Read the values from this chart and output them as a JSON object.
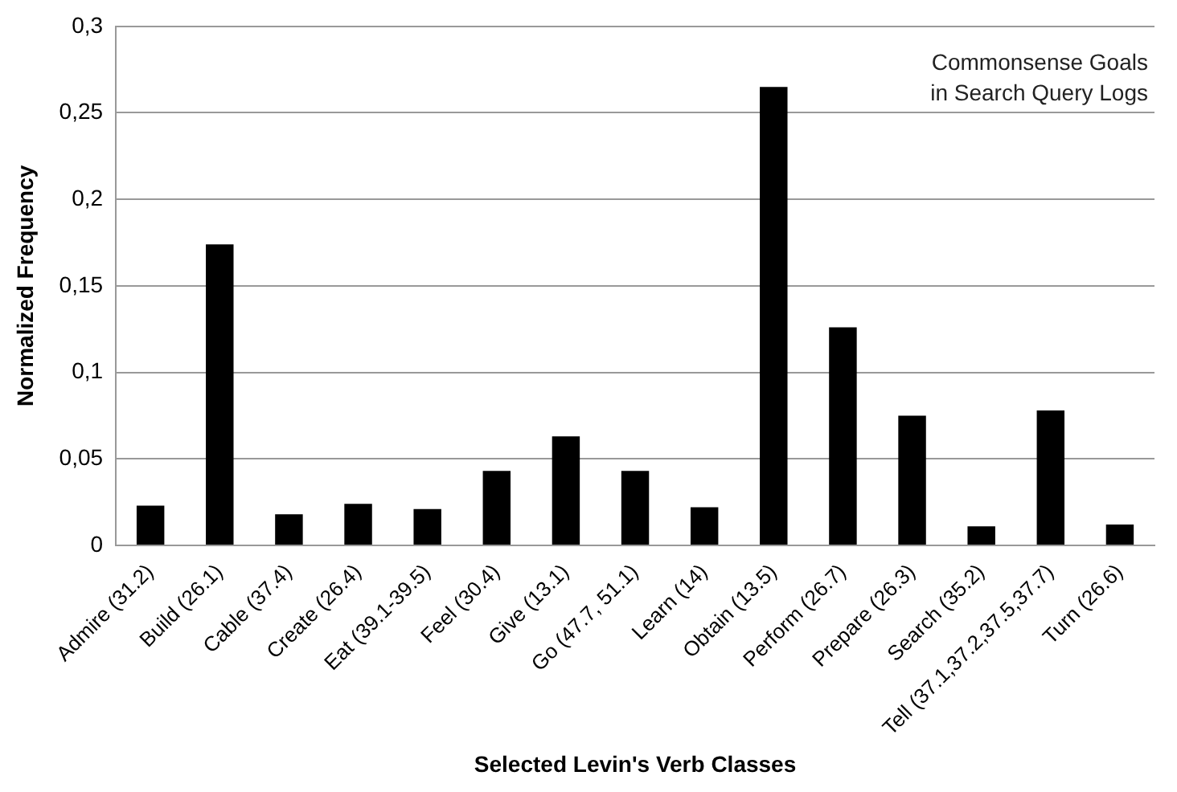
{
  "chart_data": {
    "type": "bar",
    "categories": [
      "Admire (31.2)",
      "Build (26.1)",
      "Cable (37.4)",
      "Create (26.4)",
      "Eat (39.1-39.5)",
      "Feel (30.4)",
      "Give (13.1)",
      "Go (47.7, 51.1)",
      "Learn (14)",
      "Obtain (13.5)",
      "Perform (26.7)",
      "Prepare (26.3)",
      "Search (35.2)",
      "Tell (37.1,37.2,37.5,37.7)",
      "Turn (26.6)"
    ],
    "values": [
      0.023,
      0.174,
      0.018,
      0.024,
      0.021,
      0.043,
      0.063,
      0.043,
      0.022,
      0.265,
      0.126,
      0.075,
      0.011,
      0.078,
      0.012
    ],
    "color": "#000000",
    "xlabel": "Selected Levin's Verb Classes",
    "ylabel": "Normalized Frequency",
    "annotations": [
      "Commonsense Goals\nin Search Query Logs"
    ],
    "ylim": [
      0,
      0.3
    ],
    "yticks": [
      {
        "value": 0,
        "label": "0"
      },
      {
        "value": 0.05,
        "label": "0,05"
      },
      {
        "value": 0.1,
        "label": "0,1"
      },
      {
        "value": 0.15,
        "label": "0,15"
      },
      {
        "value": 0.2,
        "label": "0,2"
      },
      {
        "value": 0.25,
        "label": "0,25"
      },
      {
        "value": 0.3,
        "label": "0,3"
      }
    ],
    "grid": "y",
    "legend": false
  }
}
